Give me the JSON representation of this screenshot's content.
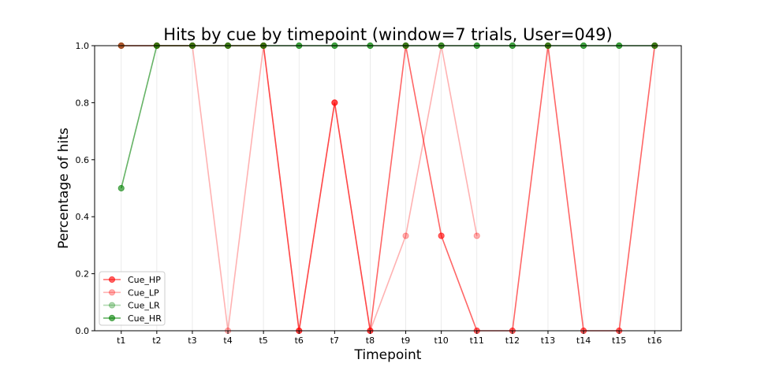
{
  "chart_data": {
    "type": "line",
    "title": "Hits by cue by timepoint (window=7 trials, User=049)",
    "xlabel": "Timepoint",
    "ylabel": "Percentage of hits",
    "ylim": [
      0,
      1
    ],
    "yticks": [
      "0.0",
      "0.2",
      "0.4",
      "0.6",
      "0.8",
      "1.0"
    ],
    "categories": [
      "t1",
      "t2",
      "t3",
      "t4",
      "t5",
      "t6",
      "t7",
      "t8",
      "t9",
      "t10",
      "t11",
      "t12",
      "t13",
      "t14",
      "t15",
      "t16"
    ],
    "grid": "vertical",
    "legend_position": "lower-left",
    "series": [
      {
        "name": "Cue_HP",
        "color": "#ff0000",
        "opacity": 0.6,
        "values": [
          1.0,
          1.0,
          1.0,
          1.0,
          1.0,
          0.0,
          0.8,
          0.0,
          1.0,
          0.333,
          0.0,
          0.0,
          1.0,
          0.0,
          0.0,
          1.0
        ]
      },
      {
        "name": "Cue_LP",
        "color": "#ff0000",
        "opacity": 0.3,
        "values": [
          1.0,
          1.0,
          1.0,
          0.0,
          1.0,
          0.0,
          0.8,
          0.0,
          0.333,
          1.0,
          0.333,
          null,
          null,
          null,
          null,
          null
        ]
      },
      {
        "name": "Cue_LR",
        "color": "#008000",
        "opacity": 0.3,
        "values": [
          1.0,
          1.0,
          1.0,
          1.0,
          1.0,
          1.0,
          1.0,
          1.0,
          1.0,
          1.0,
          1.0,
          1.0,
          1.0,
          1.0,
          1.0,
          1.0
        ]
      },
      {
        "name": "Cue_HR",
        "color": "#008000",
        "opacity": 0.6,
        "values": [
          0.5,
          1.0,
          1.0,
          1.0,
          1.0,
          1.0,
          1.0,
          1.0,
          1.0,
          1.0,
          1.0,
          1.0,
          1.0,
          1.0,
          1.0,
          1.0
        ]
      }
    ]
  }
}
